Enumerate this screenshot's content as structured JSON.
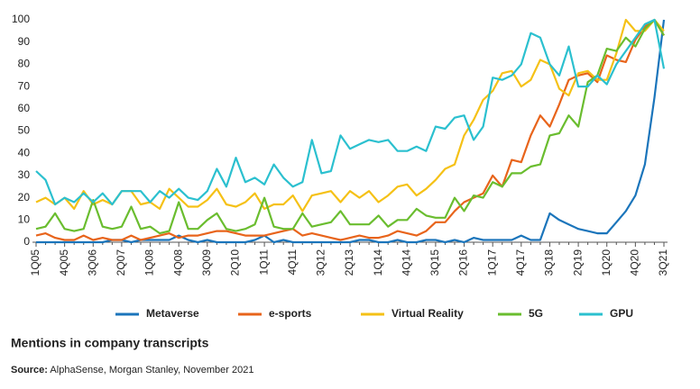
{
  "chart_data": {
    "type": "line",
    "title": "Mentions in company transcripts",
    "source_label": "Source:",
    "source": "AlphaSense, Morgan Stanley, November 2021",
    "categories": [
      "1Q05",
      null,
      null,
      "4Q05",
      null,
      null,
      "3Q06",
      null,
      null,
      "2Q07",
      null,
      null,
      "1Q08",
      null,
      null,
      "4Q08",
      null,
      null,
      "3Q09",
      null,
      null,
      "2Q10",
      null,
      null,
      "1Q11",
      null,
      null,
      "4Q11",
      null,
      null,
      "3Q12",
      null,
      null,
      "2Q13",
      null,
      null,
      "1Q14",
      null,
      null,
      "4Q14",
      null,
      null,
      "3Q15",
      null,
      null,
      "2Q16",
      null,
      null,
      "1Q17",
      null,
      null,
      "4Q17",
      null,
      null,
      "3Q18",
      null,
      null,
      "2Q19",
      null,
      null,
      "1Q20",
      null,
      null,
      "4Q20",
      null,
      null,
      "3Q21"
    ],
    "ylim": [
      0,
      100
    ],
    "yticks": [
      0,
      10,
      20,
      30,
      40,
      50,
      60,
      70,
      80,
      90,
      100
    ],
    "grid": false,
    "legend": "bottom",
    "series": [
      {
        "name": "Metaverse",
        "color": "#1b75bb",
        "values": [
          0,
          0,
          0,
          0,
          0,
          0,
          0,
          0,
          1,
          1,
          0,
          1,
          1,
          1,
          1,
          3,
          1,
          0,
          1,
          0,
          0,
          0,
          0,
          1,
          3,
          0,
          1,
          0,
          0,
          0,
          0,
          0,
          0,
          0,
          1,
          1,
          0,
          0,
          1,
          0,
          0,
          1,
          1,
          0,
          1,
          0,
          2,
          1,
          1,
          1,
          1,
          3,
          1,
          1,
          13,
          10,
          8,
          6,
          5,
          4,
          4,
          9,
          14,
          21,
          35,
          65,
          100
        ]
      },
      {
        "name": "e-sports",
        "color": "#e8641b",
        "values": [
          3,
          4,
          2,
          1,
          1,
          3,
          1,
          2,
          1,
          1,
          3,
          1,
          2,
          3,
          4,
          2,
          3,
          3,
          4,
          5,
          5,
          4,
          3,
          3,
          3,
          4,
          5,
          6,
          3,
          4,
          3,
          2,
          1,
          2,
          3,
          2,
          2,
          3,
          5,
          4,
          3,
          5,
          9,
          9,
          14,
          18,
          20,
          22,
          30,
          25,
          37,
          36,
          48,
          57,
          52,
          62,
          73,
          75,
          76,
          72,
          84,
          82,
          81,
          91,
          97,
          100,
          93
        ]
      },
      {
        "name": "Virtual Reality",
        "color": "#f5c116",
        "values": [
          18,
          20,
          17,
          20,
          15,
          23,
          17,
          19,
          17,
          23,
          23,
          17,
          18,
          15,
          24,
          20,
          16,
          16,
          19,
          24,
          17,
          16,
          18,
          22,
          15,
          17,
          17,
          21,
          14,
          21,
          22,
          23,
          18,
          23,
          20,
          23,
          18,
          21,
          25,
          26,
          21,
          24,
          28,
          33,
          35,
          48,
          55,
          64,
          68,
          76,
          77,
          70,
          73,
          82,
          80,
          69,
          66,
          76,
          77,
          73,
          73,
          85,
          100,
          95,
          95,
          100,
          95
        ]
      },
      {
        "name": "5G",
        "color": "#6abd2f",
        "values": [
          6,
          7,
          13,
          6,
          5,
          6,
          19,
          7,
          6,
          7,
          16,
          6,
          7,
          4,
          5,
          18,
          6,
          6,
          10,
          13,
          6,
          5,
          6,
          8,
          20,
          7,
          6,
          6,
          13,
          7,
          8,
          9,
          14,
          8,
          8,
          8,
          12,
          7,
          10,
          10,
          15,
          12,
          11,
          11,
          20,
          14,
          21,
          20,
          27,
          25,
          31,
          31,
          34,
          35,
          48,
          49,
          57,
          52,
          72,
          75,
          87,
          86,
          92,
          88,
          96,
          100,
          93
        ]
      },
      {
        "name": "GPU",
        "color": "#2bc0cf",
        "values": [
          32,
          28,
          17,
          20,
          18,
          22,
          18,
          22,
          17,
          23,
          23,
          23,
          18,
          23,
          20,
          24,
          20,
          19,
          23,
          33,
          25,
          38,
          27,
          29,
          26,
          35,
          29,
          25,
          27,
          46,
          31,
          32,
          48,
          42,
          44,
          46,
          45,
          46,
          41,
          41,
          43,
          41,
          52,
          51,
          56,
          57,
          46,
          52,
          74,
          73,
          75,
          80,
          94,
          92,
          80,
          75,
          88,
          70,
          70,
          75,
          71,
          80,
          86,
          92,
          98,
          100,
          78
        ]
      }
    ]
  }
}
